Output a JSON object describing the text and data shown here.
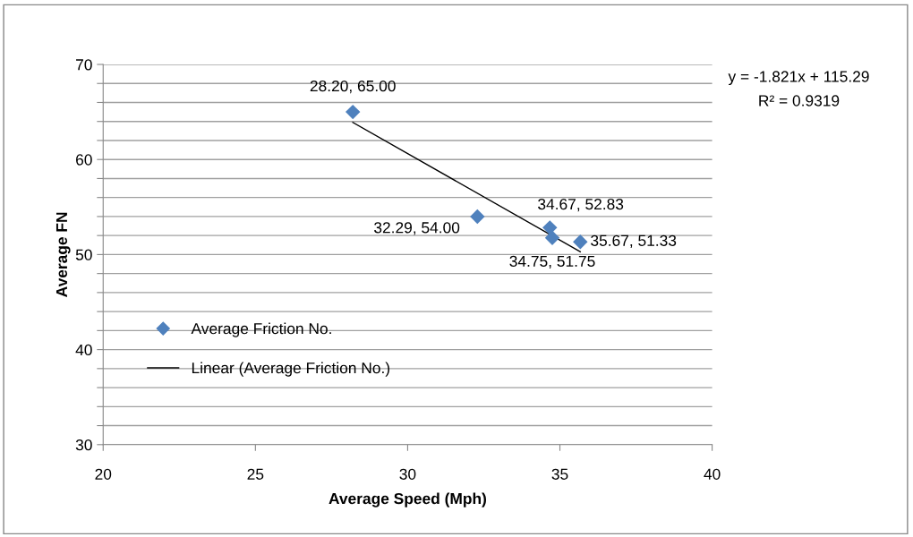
{
  "chart_data": {
    "type": "scatter",
    "xlabel": "Average Speed (Mph)",
    "ylabel": "Average FN",
    "xlim": [
      20,
      40
    ],
    "xticks": [
      20,
      25,
      30,
      35,
      40
    ],
    "ylim": [
      30,
      70
    ],
    "yticks": [
      30,
      {
        "value": 32,
        "label": null
      },
      {
        "value": 34,
        "label": null
      },
      {
        "value": 36,
        "label": null
      },
      {
        "value": 38,
        "label": null
      },
      40,
      {
        "value": 42,
        "label": null
      },
      {
        "value": 44,
        "label": null
      },
      {
        "value": 46,
        "label": null
      },
      {
        "value": 48,
        "label": null
      },
      50,
      {
        "value": 52,
        "label": null
      },
      {
        "value": 54,
        "label": null
      },
      {
        "value": 56,
        "label": null
      },
      {
        "value": 58,
        "label": null
      },
      60,
      {
        "value": 62,
        "label": null
      },
      {
        "value": 64,
        "label": null
      },
      {
        "value": 66,
        "label": null
      },
      {
        "value": 68,
        "label": null
      },
      70
    ],
    "grid": "y",
    "legend": "left",
    "series": [
      {
        "name": "Average Friction No.",
        "marker": "diamond",
        "color": "#4f81bd",
        "x": [
          28.2,
          32.29,
          34.67,
          34.75,
          35.67
        ],
        "values": [
          65.0,
          54.0,
          52.83,
          51.75,
          51.33
        ],
        "value_labels": [
          "28.20, 65.00",
          "32.29, 54.00",
          "34.67, 52.83",
          "34.75, 51.75",
          "35.67, 51.33"
        ]
      },
      {
        "name": "Linear (Average Friction No.)",
        "type": "line",
        "color": "#000000",
        "x": [
          28.2,
          35.67
        ],
        "values": [
          63.9,
          50.3
        ],
        "marker": "none"
      }
    ],
    "annotations": [
      "y = -1.821x + 115.29",
      "R² = 0.9319"
    ]
  }
}
